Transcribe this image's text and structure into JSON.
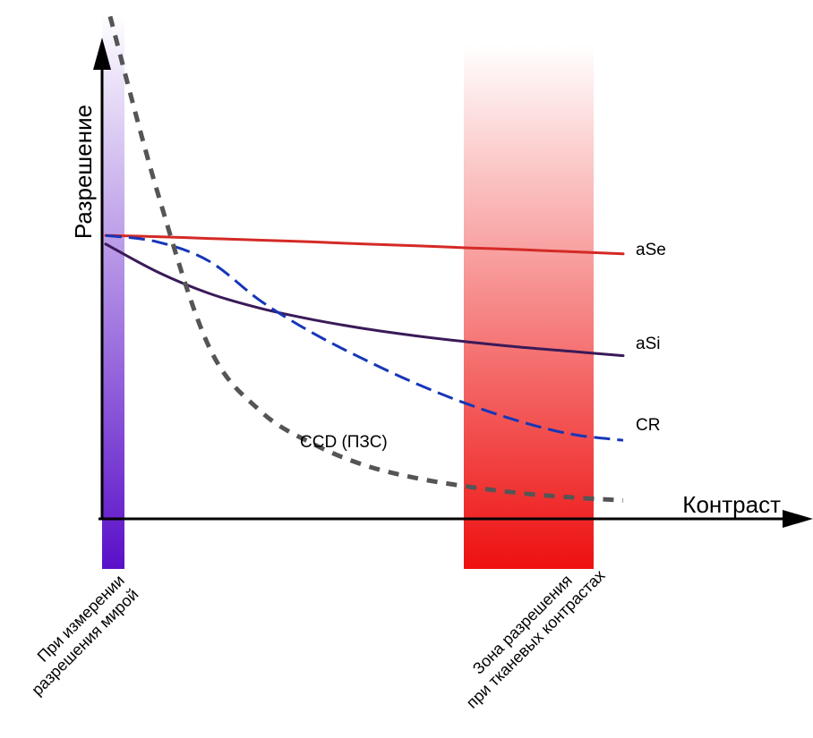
{
  "chart_data": {
    "type": "line",
    "x_axis_label": "Контраст",
    "y_axis_label": "Разрешение",
    "grid": false,
    "x": [
      0,
      0.1,
      0.2,
      0.3,
      0.4,
      0.5,
      0.6,
      0.7,
      0.8,
      0.9,
      1.0
    ],
    "series": [
      {
        "name": "aSe",
        "color": "#d42a26",
        "style": "solid",
        "values": [
          0.66,
          0.657,
          0.653,
          0.649,
          0.645,
          0.64,
          0.636,
          0.631,
          0.627,
          0.622,
          0.617
        ]
      },
      {
        "name": "aSi",
        "color": "#3a1a58",
        "style": "solid",
        "values": [
          0.64,
          0.575,
          0.525,
          0.49,
          0.464,
          0.443,
          0.426,
          0.412,
          0.4,
          0.39,
          0.38
        ]
      },
      {
        "name": "CR",
        "color": "#1636b8",
        "style": "dashed",
        "values": [
          0.66,
          0.645,
          0.6,
          0.507,
          0.433,
          0.371,
          0.315,
          0.267,
          0.227,
          0.197,
          0.183
        ]
      },
      {
        "name": "CCD (ПЗС)",
        "color": "#555555",
        "style": "dotted",
        "values": [
          1.17,
          0.76,
          0.4,
          0.25,
          0.175,
          0.125,
          0.095,
          0.075,
          0.06,
          0.05,
          0.043
        ]
      }
    ],
    "zones": [
      {
        "label_lines": [
          "При измерении",
          "разрешения мирой"
        ],
        "color_top": "#ffffff",
        "color_bottom": "#5a10c8"
      },
      {
        "label_lines": [
          "Зона разрешения",
          "при тканевых контрастах"
        ],
        "color_top": "#ffffff",
        "color_bottom": "#ee1010"
      }
    ]
  }
}
